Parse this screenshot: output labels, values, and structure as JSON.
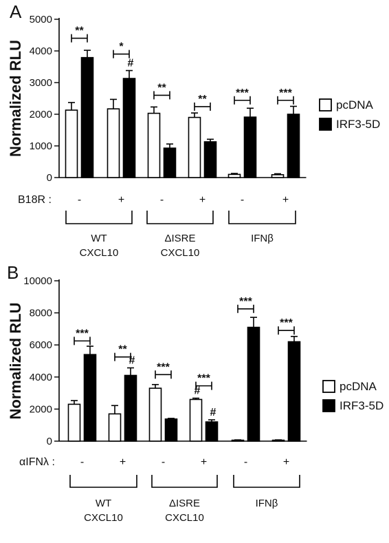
{
  "chart_data": [
    {
      "type": "bar",
      "panel_label": "A",
      "ylabel": "Normalized RLU",
      "ylim": [
        0,
        5000
      ],
      "yticks": [
        0,
        1000,
        2000,
        3000,
        4000,
        5000
      ],
      "treatment_label": "B18R :",
      "treatment_symbols": [
        "-",
        "+",
        "-",
        "+",
        "-",
        "+"
      ],
      "groups": [
        {
          "label_lines": [
            "WT",
            "CXCL10"
          ]
        },
        {
          "label_lines": [
            "ΔISRE",
            "CXCL10"
          ]
        },
        {
          "label_lines": [
            "IFNβ"
          ]
        }
      ],
      "legend_position": "right",
      "series": [
        {
          "name": "pcDNA",
          "color": "#ffffff",
          "values": [
            2130,
            2170,
            2030,
            1900,
            100,
            90
          ],
          "errors": [
            240,
            300,
            200,
            140,
            30,
            30
          ]
        },
        {
          "name": "IRF3-5D",
          "color": "#000000",
          "values": [
            3790,
            3130,
            930,
            1130,
            1910,
            2000
          ],
          "errors": [
            230,
            250,
            130,
            80,
            280,
            250
          ]
        }
      ],
      "significance": [
        {
          "pair": 0,
          "label": "**",
          "y": 4400
        },
        {
          "pair": 1,
          "label": "*",
          "y": 3900
        },
        {
          "pair": 2,
          "label": "**",
          "y": 2600
        },
        {
          "pair": 3,
          "label": "**",
          "y": 2240
        },
        {
          "pair": 4,
          "label": "***",
          "y": 2440
        },
        {
          "pair": 5,
          "label": "***",
          "y": 2440
        }
      ],
      "hash_marks": [
        {
          "pair": 1,
          "series": 1,
          "label": "#"
        }
      ]
    },
    {
      "type": "bar",
      "panel_label": "B",
      "ylabel": "Normalized RLU",
      "ylim": [
        0,
        10000
      ],
      "yticks": [
        0,
        2000,
        4000,
        6000,
        8000,
        10000
      ],
      "treatment_label": "αIFNλ :",
      "treatment_symbols": [
        "-",
        "+",
        "-",
        "+",
        "-",
        "+"
      ],
      "groups": [
        {
          "label_lines": [
            "WT",
            "CXCL10"
          ]
        },
        {
          "label_lines": [
            "ΔISRE",
            "CXCL10"
          ]
        },
        {
          "label_lines": [
            "IFNβ"
          ]
        }
      ],
      "legend_position": "right",
      "series": [
        {
          "name": "pcDNA",
          "color": "#ffffff",
          "values": [
            2300,
            1700,
            3300,
            2600,
            60,
            60
          ],
          "errors": [
            230,
            520,
            230,
            80,
            20,
            20
          ]
        },
        {
          "name": "IRF3-5D",
          "color": "#000000",
          "values": [
            5400,
            4100,
            1380,
            1200,
            7100,
            6200
          ],
          "errors": [
            520,
            470,
            40,
            130,
            620,
            330
          ]
        }
      ],
      "significance": [
        {
          "pair": 0,
          "label": "***",
          "y": 6250
        },
        {
          "pair": 1,
          "label": "**",
          "y": 5250
        },
        {
          "pair": 2,
          "label": "***",
          "y": 4150
        },
        {
          "pair": 3,
          "label": "***",
          "y": 3450
        },
        {
          "pair": 4,
          "label": "***",
          "y": 8250
        },
        {
          "pair": 5,
          "label": "***",
          "y": 6900
        }
      ],
      "hash_marks": [
        {
          "pair": 1,
          "series": 1,
          "label": "#"
        },
        {
          "pair": 3,
          "series": 0,
          "label": "#"
        },
        {
          "pair": 3,
          "series": 1,
          "label": "#"
        }
      ]
    }
  ]
}
